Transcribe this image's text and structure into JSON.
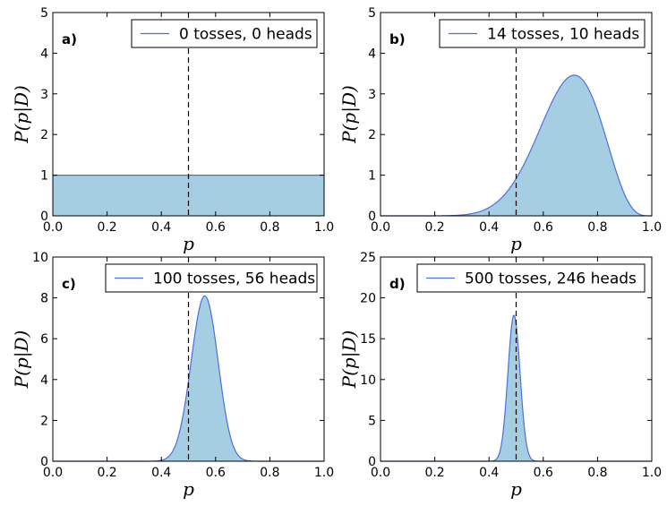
{
  "chart_data": [
    {
      "type": "area",
      "panel_label": "a)",
      "series": [
        {
          "name": "0 tosses, 0 heads",
          "tosses": 0,
          "heads": 0
        }
      ],
      "xlabel": "p",
      "ylabel": "P(p|D)",
      "xlim": [
        0.0,
        1.0
      ],
      "ylim": [
        0,
        5
      ],
      "xticks": [
        "0.0",
        "0.2",
        "0.4",
        "0.6",
        "0.8",
        "1.0"
      ],
      "yticks": [
        "0",
        "1",
        "2",
        "3",
        "4",
        "5"
      ],
      "vline": 0.5,
      "legend_position": "top-right",
      "grid": false
    },
    {
      "type": "area",
      "panel_label": "b)",
      "series": [
        {
          "name": "14 tosses, 10 heads",
          "tosses": 14,
          "heads": 10
        }
      ],
      "xlabel": "p",
      "ylabel": "P(p|D)",
      "xlim": [
        0.0,
        1.0
      ],
      "ylim": [
        0,
        5
      ],
      "xticks": [
        "0.0",
        "0.2",
        "0.4",
        "0.6",
        "0.8",
        "1.0"
      ],
      "yticks": [
        "0",
        "1",
        "2",
        "3",
        "4",
        "5"
      ],
      "vline": 0.5,
      "legend_position": "top-right",
      "grid": false
    },
    {
      "type": "area",
      "panel_label": "c)",
      "series": [
        {
          "name": "100 tosses, 56 heads",
          "tosses": 100,
          "heads": 56
        }
      ],
      "xlabel": "p",
      "ylabel": "P(p|D)",
      "xlim": [
        0.0,
        1.0
      ],
      "ylim": [
        0,
        10
      ],
      "xticks": [
        "0.0",
        "0.2",
        "0.4",
        "0.6",
        "0.8",
        "1.0"
      ],
      "yticks": [
        "0",
        "2",
        "4",
        "6",
        "8",
        "10"
      ],
      "vline": 0.5,
      "legend_position": "top-right",
      "grid": false
    },
    {
      "type": "area",
      "panel_label": "d)",
      "series": [
        {
          "name": "500 tosses, 246 heads",
          "tosses": 500,
          "heads": 246
        }
      ],
      "xlabel": "p",
      "ylabel": "P(p|D)",
      "xlim": [
        0.0,
        1.0
      ],
      "ylim": [
        0,
        25
      ],
      "xticks": [
        "0.0",
        "0.2",
        "0.4",
        "0.6",
        "0.8",
        "1.0"
      ],
      "yticks": [
        "0",
        "5",
        "10",
        "15",
        "20",
        "25"
      ],
      "vline": 0.5,
      "legend_position": "top-right",
      "grid": false
    }
  ],
  "colors": {
    "fill": "#a6cee3",
    "line": "#4b6fdb",
    "vline": "#000000",
    "axes": "#000000",
    "background": "#ffffff"
  }
}
